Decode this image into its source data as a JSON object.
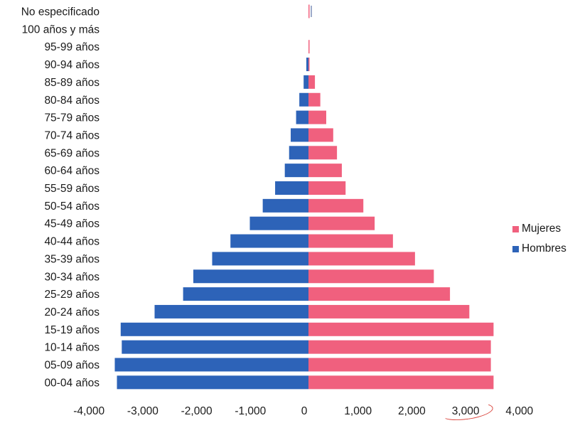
{
  "chart_data": {
    "type": "bar",
    "orientation": "horizontal",
    "layout": "population-pyramid",
    "categories": [
      "No especificado",
      "100 años y más",
      "95-99 años",
      "90-94 años",
      "85-89 años",
      "80-84 años",
      "75-79 años",
      "70-74 años",
      "65-69 años",
      "60-64 años",
      "55-59 años",
      "50-54 años",
      "45-49 años",
      "40-44 años",
      "35-39 años",
      "30-34 años",
      "25-29 años",
      "20-24 años",
      "15-19 años",
      "10-14 años",
      "05-09 años",
      "00-04 años"
    ],
    "series": [
      {
        "name": "Mujeres",
        "color": "#f0607e",
        "values": [
          10,
          0,
          5,
          20,
          120,
          220,
          330,
          460,
          530,
          620,
          690,
          1020,
          1230,
          1570,
          1980,
          2330,
          2630,
          2990,
          3440,
          3390,
          3390,
          3440
        ]
      },
      {
        "name": "Hombres",
        "color": "#2d63b8",
        "values": [
          0,
          0,
          0,
          -40,
          -90,
          -170,
          -230,
          -330,
          -360,
          -440,
          -620,
          -850,
          -1090,
          -1450,
          -1790,
          -2140,
          -2330,
          -2860,
          -3490,
          -3470,
          -3600,
          -3560
        ]
      }
    ],
    "xlim": [
      -4000,
      4000
    ],
    "xticks": [
      "-4,000",
      "-3,000",
      "-2,000",
      "-1,000",
      "0",
      "1,000",
      "2,000",
      "3,000",
      "4,000"
    ],
    "legend_position": "right",
    "grid": false
  }
}
